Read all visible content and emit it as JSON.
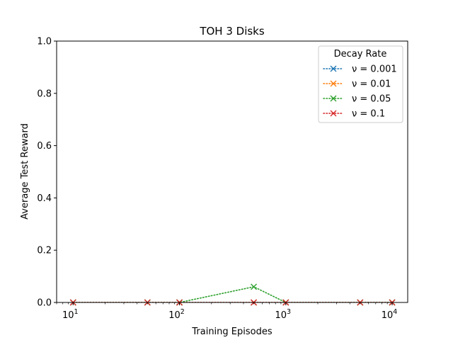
{
  "chart_data": {
    "type": "line",
    "title": "TOH 3 Disks",
    "xlabel": "Training Episodes",
    "ylabel": "Average Test Reward",
    "xscale": "log",
    "xlim": [
      7,
      14000
    ],
    "ylim": [
      0.0,
      1.0
    ],
    "x": [
      10,
      50,
      100,
      500,
      1000,
      5000,
      10000
    ],
    "x_ticks": [
      10,
      100,
      1000,
      10000
    ],
    "x_tick_labels": [
      {
        "base": "10",
        "exp": "1"
      },
      {
        "base": "10",
        "exp": "2"
      },
      {
        "base": "10",
        "exp": "3"
      },
      {
        "base": "10",
        "exp": "4"
      }
    ],
    "y_ticks": [
      0.0,
      0.2,
      0.4,
      0.6,
      0.8,
      1.0
    ],
    "y_tick_labels": [
      "0.0",
      "0.2",
      "0.4",
      "0.6",
      "0.8",
      "1.0"
    ],
    "grid": false,
    "legend": {
      "title": "Decay Rate",
      "placement": "top-right"
    },
    "series": [
      {
        "name": "ν = 0.001",
        "color": "#1f77b4",
        "values": [
          0,
          0,
          0,
          0,
          0,
          0,
          0
        ]
      },
      {
        "name": "ν = 0.01",
        "color": "#ff7f0e",
        "values": [
          0,
          0,
          0,
          0,
          0,
          0,
          0
        ]
      },
      {
        "name": "ν = 0.05",
        "color": "#2ca02c",
        "values": [
          0,
          0,
          0,
          0.06,
          0,
          0,
          0
        ]
      },
      {
        "name": "ν = 0.1",
        "color": "#d62728",
        "values": [
          0,
          0,
          0,
          0,
          0,
          0,
          0
        ]
      }
    ]
  }
}
